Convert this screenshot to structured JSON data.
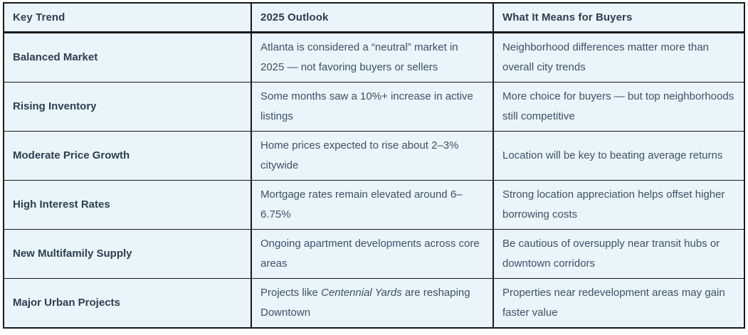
{
  "table": {
    "columns": [
      "Key Trend",
      "2025 Outlook",
      "What It Means for Buyers"
    ],
    "rows": [
      {
        "trend": "Balanced Market",
        "outlook": "Atlanta is considered a “neutral” market in 2025 — not favoring buyers or sellers",
        "meaning": "Neighborhood differences matter more than overall city trends"
      },
      {
        "trend": "Rising Inventory",
        "outlook": "Some months saw a 10%+ increase in active listings",
        "meaning": "More choice for buyers — but top neighborhoods still competitive"
      },
      {
        "trend": "Moderate Price Growth",
        "outlook": "Home prices expected to rise about 2–3% citywide",
        "meaning": "Location will be key to beating average returns"
      },
      {
        "trend": "High Interest Rates",
        "outlook": "Mortgage rates remain elevated around 6–6.75%",
        "meaning": "Strong location appreciation helps offset higher borrowing costs"
      },
      {
        "trend": "New Multifamily Supply",
        "outlook": "Ongoing apartment developments across core areas",
        "meaning": "Be cautious of oversupply near transit hubs or downtown corridors"
      },
      {
        "trend": "Major Urban Projects",
        "outlook": [
          {
            "text": "Projects like "
          },
          {
            "text": "Centennial Yards",
            "italic": true
          },
          {
            "text": " are reshaping Downtown"
          }
        ],
        "meaning": "Properties near redevelopment areas may gain faster value"
      }
    ]
  },
  "colors": {
    "cell_background": "#e9f5fb",
    "border": "#191919",
    "heading_text": "#2d3e50",
    "body_text": "#3e5065"
  }
}
